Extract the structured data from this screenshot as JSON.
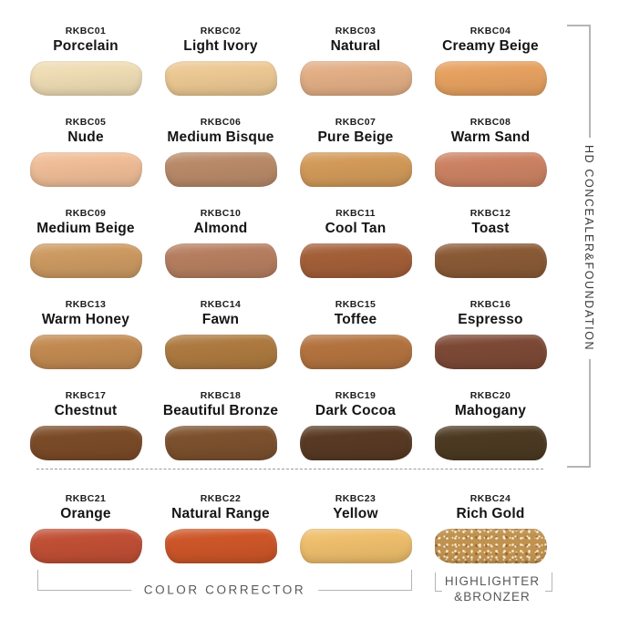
{
  "right_bracket": {
    "label": "HD CONCEALER&FOUNDATION"
  },
  "bottom_brackets": {
    "color_corrector_label": "COLOR CORRECTOR",
    "highlighter_line1": "HIGHLIGHTER",
    "highlighter_line2": "&BRONZER"
  },
  "colors": {
    "bracket_line": "#b5b5b5",
    "dashed_line": "#9c9c9c",
    "label_text": "#151515",
    "group_text": "#58595b"
  },
  "shades": [
    {
      "code": "RKBC01",
      "name": "Porcelain",
      "color": "#eedcb4",
      "group": "HD CONCEALER&FOUNDATION"
    },
    {
      "code": "RKBC02",
      "name": "Light Ivory",
      "color": "#ecc893",
      "group": "HD CONCEALER&FOUNDATION"
    },
    {
      "code": "RKBC03",
      "name": "Natural",
      "color": "#e2ae85",
      "group": "HD CONCEALER&FOUNDATION"
    },
    {
      "code": "RKBC04",
      "name": "Creamy Beige",
      "color": "#e6a160",
      "group": "HD CONCEALER&FOUNDATION"
    },
    {
      "code": "RKBC05",
      "name": "Nude",
      "color": "#efbd97",
      "group": "HD CONCEALER&FOUNDATION"
    },
    {
      "code": "RKBC06",
      "name": "Medium Bisque",
      "color": "#b98a69",
      "group": "HD CONCEALER&FOUNDATION"
    },
    {
      "code": "RKBC07",
      "name": "Pure Beige",
      "color": "#d29a59",
      "group": "HD CONCEALER&FOUNDATION"
    },
    {
      "code": "RKBC08",
      "name": "Warm Sand",
      "color": "#cc8263",
      "group": "HD CONCEALER&FOUNDATION"
    },
    {
      "code": "RKBC09",
      "name": "Medium Beige",
      "color": "#cc9a62",
      "group": "HD CONCEALER&FOUNDATION"
    },
    {
      "code": "RKBC10",
      "name": "Almond",
      "color": "#b67e60",
      "group": "HD CONCEALER&FOUNDATION"
    },
    {
      "code": "RKBC11",
      "name": "Cool Tan",
      "color": "#a35f38",
      "group": "HD CONCEALER&FOUNDATION"
    },
    {
      "code": "RKBC12",
      "name": "Toast",
      "color": "#8a5a36",
      "group": "HD CONCEALER&FOUNDATION"
    },
    {
      "code": "RKBC13",
      "name": "Warm Honey",
      "color": "#c28a51",
      "group": "HD CONCEALER&FOUNDATION"
    },
    {
      "code": "RKBC14",
      "name": "Fawn",
      "color": "#ad7a40",
      "group": "HD CONCEALER&FOUNDATION"
    },
    {
      "code": "RKBC15",
      "name": "Toffee",
      "color": "#b3733f",
      "group": "HD CONCEALER&FOUNDATION"
    },
    {
      "code": "RKBC16",
      "name": "Espresso",
      "color": "#7d4936",
      "group": "HD CONCEALER&FOUNDATION"
    },
    {
      "code": "RKBC17",
      "name": "Chestnut",
      "color": "#7b4b28",
      "group": "HD CONCEALER&FOUNDATION"
    },
    {
      "code": "RKBC18",
      "name": "Beautiful Bronze",
      "color": "#7c512e",
      "group": "HD CONCEALER&FOUNDATION"
    },
    {
      "code": "RKBC19",
      "name": "Dark Cocoa",
      "color": "#583a24",
      "group": "HD CONCEALER&FOUNDATION"
    },
    {
      "code": "RKBC20",
      "name": "Mahogany",
      "color": "#4c3a22",
      "group": "HD CONCEALER&FOUNDATION"
    },
    {
      "code": "RKBC21",
      "name": "Orange",
      "color": "#c04f35",
      "group": "COLOR CORRECTOR"
    },
    {
      "code": "RKBC22",
      "name": "Natural Range",
      "color": "#cd5628",
      "group": "COLOR CORRECTOR"
    },
    {
      "code": "RKBC23",
      "name": "Yellow",
      "color": "#eebe6c",
      "group": "COLOR CORRECTOR"
    },
    {
      "code": "RKBC24",
      "name": "Rich Gold",
      "color": "#c0914f",
      "group": "HIGHLIGHTER&BRONZER",
      "glitter": true
    }
  ]
}
